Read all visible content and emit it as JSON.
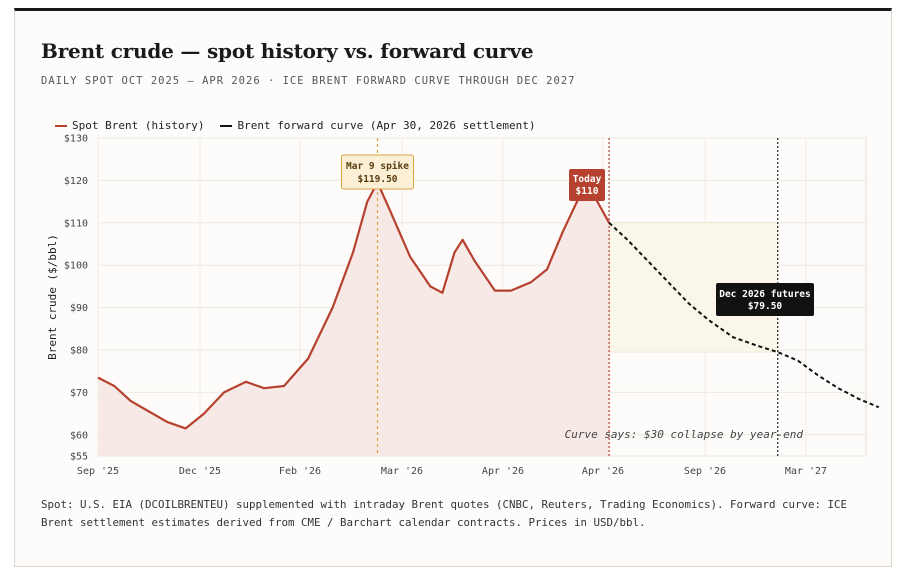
{
  "title": "Brent crude — spot history vs. forward curve",
  "subtitle": "DAILY SPOT OCT 2025 – APR 2026 · ICE BRENT FORWARD CURVE THROUGH DEC 2027",
  "legend": {
    "spot": "Spot Brent (history)",
    "forward": "Brent forward curve (Apr 30, 2026 settlement)"
  },
  "colors": {
    "spot": "#b5412e",
    "forward": "#111111",
    "spot_fill": "#f6e6e2",
    "spike_callout": "#d9a441",
    "today_callout": "#b5412e",
    "band_fill": "#fbf6ea"
  },
  "chart_data": {
    "type": "line",
    "title": "Brent crude — spot history vs. forward curve",
    "ylabel": "Brent crude ($/bbl)",
    "ylim": [
      55,
      130
    ],
    "yticks": [
      "$55",
      "$60",
      "$70",
      "$80",
      "$90",
      "$100",
      "$110",
      "$120",
      "$130"
    ],
    "ytick_values": [
      55,
      60,
      70,
      80,
      90,
      100,
      110,
      120,
      130
    ],
    "xticks": [
      "Sep '25",
      "Dec '25",
      "Feb '26",
      "Mar '26",
      "Apr '26",
      "Apr '26",
      "Sep '26",
      "Mar '27"
    ],
    "grid": true,
    "legend_position": "top-left",
    "series": [
      {
        "name": "Spot Brent (history)",
        "points": [
          [
            0,
            73.5
          ],
          [
            0.08,
            71.5
          ],
          [
            0.16,
            68
          ],
          [
            0.25,
            65.5
          ],
          [
            0.34,
            63
          ],
          [
            0.43,
            61.5
          ],
          [
            0.52,
            65
          ],
          [
            0.62,
            70
          ],
          [
            0.73,
            72.5
          ],
          [
            0.82,
            71
          ],
          [
            0.92,
            71.5
          ],
          [
            1.04,
            78
          ],
          [
            1.16,
            90
          ],
          [
            1.26,
            103
          ],
          [
            1.33,
            115
          ],
          [
            1.38,
            119.5
          ],
          [
            1.44,
            113
          ],
          [
            1.54,
            102
          ],
          [
            1.64,
            95
          ],
          [
            1.7,
            93.5
          ],
          [
            1.76,
            103
          ],
          [
            1.8,
            106
          ],
          [
            1.86,
            101
          ],
          [
            1.96,
            94
          ],
          [
            2.04,
            94
          ],
          [
            2.14,
            96
          ],
          [
            2.22,
            99
          ],
          [
            2.3,
            108
          ],
          [
            2.38,
            116
          ],
          [
            2.42,
            118
          ],
          [
            2.46,
            116
          ],
          [
            2.53,
            110
          ]
        ]
      },
      {
        "name": "Brent forward curve (Apr 30, 2026 settlement)",
        "points": [
          [
            2.53,
            110
          ],
          [
            2.62,
            106
          ],
          [
            2.72,
            101
          ],
          [
            2.82,
            96
          ],
          [
            2.92,
            91
          ],
          [
            3.02,
            87
          ],
          [
            3.14,
            83
          ],
          [
            3.26,
            81
          ],
          [
            3.36,
            79.5
          ],
          [
            3.46,
            77.5
          ],
          [
            3.56,
            74
          ],
          [
            3.66,
            71
          ],
          [
            3.76,
            68.5
          ],
          [
            3.86,
            66.5
          ]
        ]
      }
    ],
    "annotations": {
      "spike": {
        "label": "Mar 9 spike",
        "value_label": "$119.50",
        "value": 119.5
      },
      "today": {
        "label": "Today",
        "value_label": "$110",
        "value": 110
      },
      "dec_futures": {
        "label": "Dec 2026 futures",
        "value_label": "$79.50",
        "value": 79.5
      },
      "band": {
        "from": 79.5,
        "to": 110
      },
      "note": "Curve says: $30 collapse by year-end"
    }
  },
  "footnote": "Spot: U.S. EIA (DCOILBRENTEU) supplemented with intraday Brent quotes (CNBC, Reuters, Trading Economics). Forward curve: ICE Brent settlement estimates derived from CME / Barchart calendar contracts. Prices in USD/bbl."
}
